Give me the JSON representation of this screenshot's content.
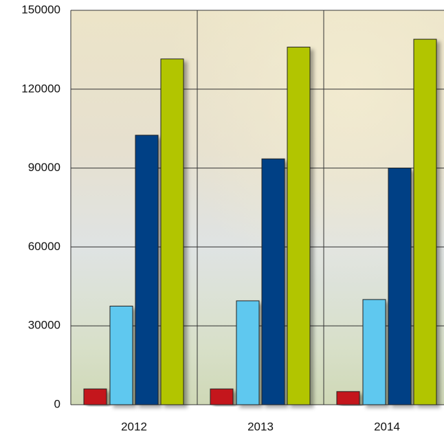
{
  "chart_data": {
    "type": "bar",
    "categories": [
      "2012",
      "2013",
      "2014"
    ],
    "series": [
      {
        "color": "#c4121d",
        "values": [
          6000,
          6000,
          5000
        ]
      },
      {
        "color": "#5ec8ef",
        "values": [
          37500,
          39500,
          40000
        ]
      },
      {
        "color": "#003f85",
        "values": [
          102500,
          93500,
          90000
        ]
      },
      {
        "color": "#b2c500",
        "values": [
          131500,
          136000,
          139000
        ]
      }
    ],
    "ylim": [
      0,
      150000
    ],
    "yticks": [
      0,
      30000,
      60000,
      90000,
      120000,
      150000
    ],
    "grid": true
  }
}
